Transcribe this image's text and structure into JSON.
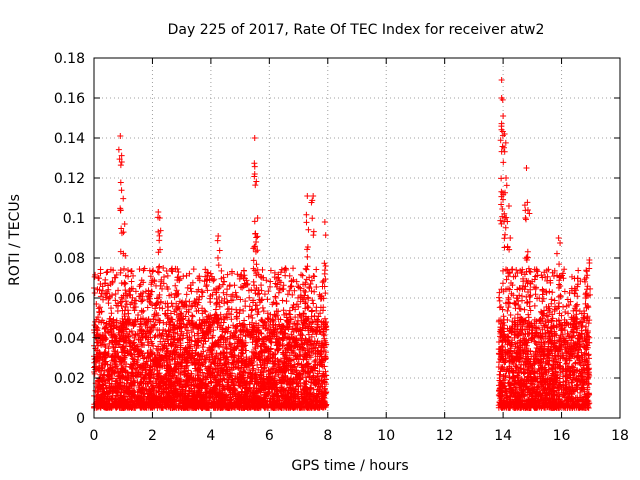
{
  "chart_data": {
    "type": "scatter",
    "title": "Day 225 of 2017, Rate Of TEC Index for receiver atw2",
    "xlabel": "GPS time / hours",
    "ylabel": "ROTI / TECUs",
    "xlim": [
      0,
      18
    ],
    "ylim": [
      0,
      0.18
    ],
    "x_ticks": [
      0,
      2,
      4,
      6,
      8,
      10,
      12,
      14,
      16,
      18
    ],
    "x_tick_labels": [
      "0",
      "2",
      "4",
      "6",
      "8",
      "10",
      "12",
      "14",
      "16",
      "18"
    ],
    "y_ticks": [
      0,
      0.02,
      0.04,
      0.06,
      0.08,
      0.1,
      0.12,
      0.14,
      0.16,
      0.18
    ],
    "y_tick_labels": [
      "0",
      "0.02",
      "0.04",
      "0.06",
      "0.08",
      "0.1",
      "0.12",
      "0.14",
      "0.16",
      "0.18"
    ],
    "grid": true,
    "marker": "+",
    "color": "#ff0000",
    "series": [
      {
        "name": "ROTI",
        "description": "dense scatter of ROTI samples in two observation windows",
        "windows": [
          {
            "x_range": [
              0.0,
              7.95
            ],
            "typical_range": [
              0.005,
              0.05
            ],
            "spikes": [
              {
                "x": 0.9,
                "y": 0.141
              },
              {
                "x": 0.95,
                "y": 0.128
              },
              {
                "x": 1.05,
                "y": 0.097
              },
              {
                "x": 2.2,
                "y": 0.103
              },
              {
                "x": 2.25,
                "y": 0.1
              },
              {
                "x": 4.25,
                "y": 0.091
              },
              {
                "x": 5.5,
                "y": 0.14
              },
              {
                "x": 5.5,
                "y": 0.122
              },
              {
                "x": 5.6,
                "y": 0.1
              },
              {
                "x": 7.3,
                "y": 0.111
              },
              {
                "x": 7.5,
                "y": 0.111
              },
              {
                "x": 7.9,
                "y": 0.098
              }
            ]
          },
          {
            "x_range": [
              13.85,
              16.95
            ],
            "typical_range": [
              0.005,
              0.05
            ],
            "spikes": [
              {
                "x": 13.95,
                "y": 0.169
              },
              {
                "x": 13.95,
                "y": 0.16
              },
              {
                "x": 14.0,
                "y": 0.151
              },
              {
                "x": 14.05,
                "y": 0.142
              },
              {
                "x": 14.1,
                "y": 0.12
              },
              {
                "x": 14.2,
                "y": 0.106
              },
              {
                "x": 14.8,
                "y": 0.125
              },
              {
                "x": 14.85,
                "y": 0.104
              },
              {
                "x": 15.9,
                "y": 0.09
              },
              {
                "x": 16.95,
                "y": 0.079
              }
            ]
          }
        ]
      }
    ]
  }
}
